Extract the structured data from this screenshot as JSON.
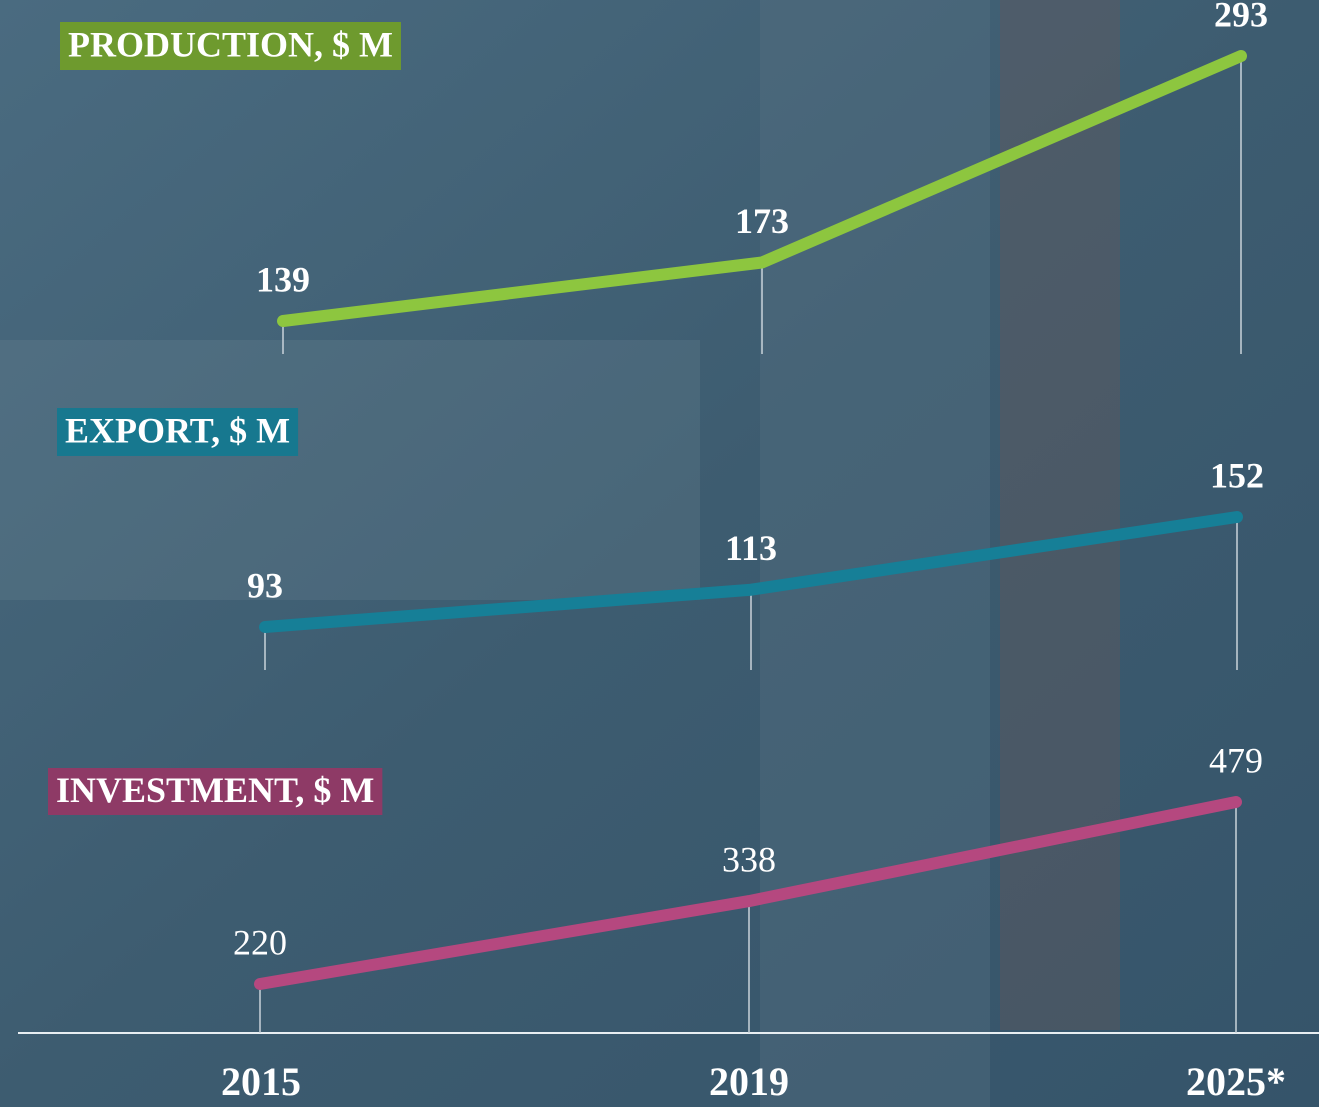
{
  "chart_data": {
    "type": "line",
    "categories": [
      "2015",
      "2019",
      "2025*"
    ],
    "series": [
      {
        "name": "PRODUCTION, $ M",
        "color": "#8dc63f",
        "values": [
          139,
          173,
          293
        ]
      },
      {
        "name": "EXPORT, $ M",
        "color": "#167f97",
        "values": [
          93,
          113,
          152
        ]
      },
      {
        "name": "INVESTMENT, $ M",
        "color": "#b5487f",
        "values": [
          220,
          338,
          479
        ]
      }
    ]
  }
}
